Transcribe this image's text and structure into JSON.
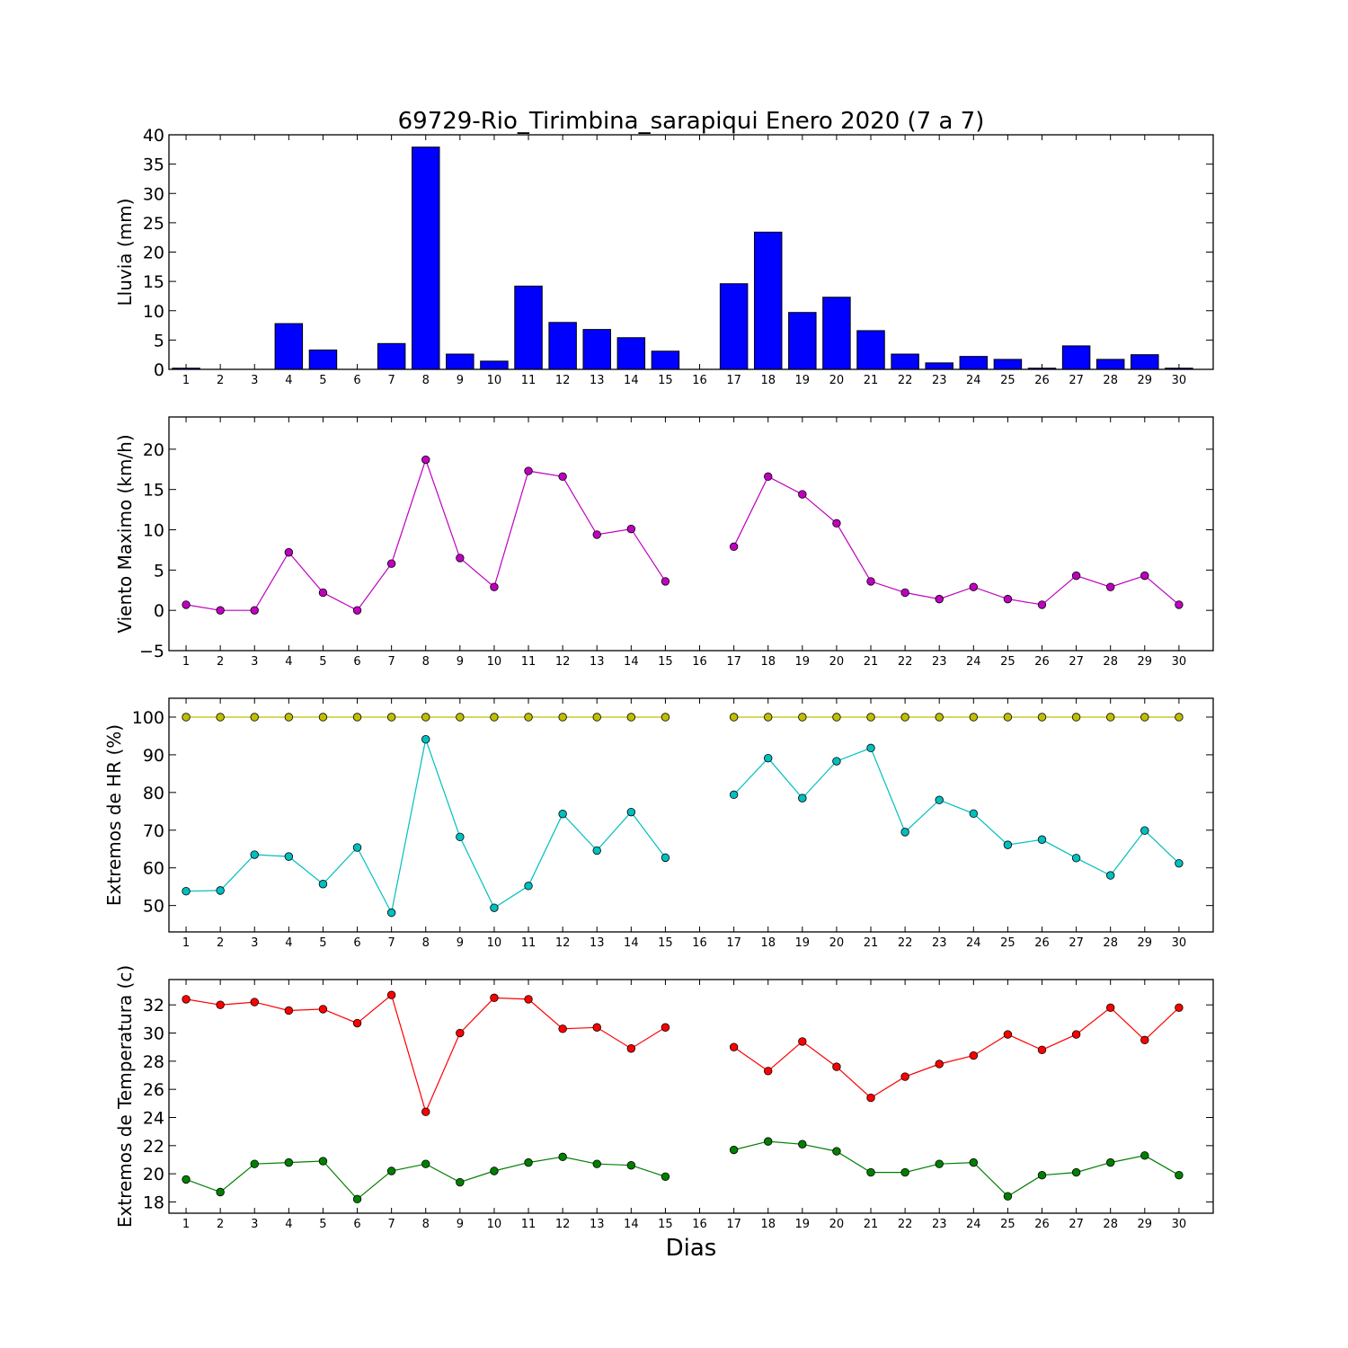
{
  "chart_data": [
    {
      "type": "bar",
      "title": "69729-Rio_Tirimbina_sarapiqui Enero 2020  (7 a 7)",
      "ylabel": "Lluvia (mm)",
      "xlabel": "",
      "categories": [
        1,
        2,
        3,
        4,
        5,
        6,
        7,
        8,
        9,
        10,
        11,
        12,
        13,
        14,
        15,
        16,
        17,
        18,
        19,
        20,
        21,
        22,
        23,
        24,
        25,
        26,
        27,
        28,
        29,
        30
      ],
      "values": [
        0.2,
        0,
        0,
        7.8,
        3.3,
        0,
        4.4,
        37.9,
        2.6,
        1.4,
        14.2,
        8.0,
        6.8,
        5.4,
        3.1,
        0,
        14.6,
        23.4,
        9.7,
        12.3,
        6.6,
        2.6,
        1.1,
        2.2,
        1.7,
        0.2,
        4.0,
        1.7,
        2.5,
        0.2
      ],
      "ylim": [
        0,
        40
      ],
      "yticks": [
        0,
        5,
        10,
        15,
        20,
        25,
        30,
        35,
        40
      ],
      "grid": false,
      "colors": {
        "bar": "#0000ff",
        "edge": "#000000"
      }
    },
    {
      "type": "line",
      "ylabel": "Viento Maximo (km/h)",
      "categories": [
        1,
        2,
        3,
        4,
        5,
        6,
        7,
        8,
        9,
        10,
        11,
        12,
        13,
        14,
        15,
        16,
        17,
        18,
        19,
        20,
        21,
        22,
        23,
        24,
        25,
        26,
        27,
        28,
        29,
        30
      ],
      "series": [
        {
          "values": [
            0.7,
            0,
            0,
            7.2,
            2.2,
            0,
            5.8,
            18.7,
            6.5,
            2.9,
            17.3,
            16.6,
            9.4,
            10.1,
            3.6,
            null,
            7.9,
            16.6,
            14.4,
            10.8,
            3.6,
            2.2,
            1.4,
            2.9,
            1.4,
            0.7,
            4.3,
            2.9,
            4.3,
            0.7
          ],
          "color": "#bf00bf"
        }
      ],
      "ylim": [
        -5,
        24
      ],
      "yticks": [
        -5,
        0,
        5,
        10,
        15,
        20
      ],
      "grid": false
    },
    {
      "type": "line",
      "ylabel": "Extremos de HR (%)",
      "categories": [
        1,
        2,
        3,
        4,
        5,
        6,
        7,
        8,
        9,
        10,
        11,
        12,
        13,
        14,
        15,
        16,
        17,
        18,
        19,
        20,
        21,
        22,
        23,
        24,
        25,
        26,
        27,
        28,
        29,
        30
      ],
      "series": [
        {
          "values": [
            100,
            100,
            100,
            100,
            100,
            100,
            100,
            100,
            100,
            100,
            100,
            100,
            100,
            100,
            100,
            null,
            100,
            100,
            100,
            100,
            100,
            100,
            100,
            100,
            100,
            100,
            100,
            100,
            100,
            100
          ],
          "color": "#bfbf00"
        },
        {
          "values": [
            53.8,
            54,
            63.5,
            63,
            55.7,
            65.4,
            48.1,
            94.1,
            68.2,
            49.4,
            55.2,
            74.3,
            64.6,
            74.8,
            62.7,
            null,
            79.4,
            89.1,
            78.5,
            88.3,
            91.8,
            69.5,
            78,
            74.4,
            66.1,
            67.5,
            62.6,
            58,
            69.9,
            61.2
          ],
          "color": "#00bfbf"
        }
      ],
      "ylim": [
        43,
        105
      ],
      "yticks": [
        50,
        60,
        70,
        80,
        90,
        100
      ],
      "grid": false
    },
    {
      "type": "line",
      "ylabel": "Extremos de Temperatura (c)",
      "xlabel": "Dias",
      "categories": [
        1,
        2,
        3,
        4,
        5,
        6,
        7,
        8,
        9,
        10,
        11,
        12,
        13,
        14,
        15,
        16,
        17,
        18,
        19,
        20,
        21,
        22,
        23,
        24,
        25,
        26,
        27,
        28,
        29,
        30
      ],
      "series": [
        {
          "values": [
            32.4,
            32,
            32.2,
            31.6,
            31.7,
            30.7,
            32.7,
            24.4,
            30,
            32.5,
            32.4,
            30.3,
            30.4,
            28.9,
            30.4,
            null,
            29,
            27.3,
            29.4,
            27.6,
            25.4,
            26.9,
            27.8,
            28.4,
            29.9,
            28.8,
            29.9,
            31.8,
            29.5,
            31.8
          ],
          "color": "#ff0000"
        },
        {
          "values": [
            19.6,
            18.7,
            20.7,
            20.8,
            20.9,
            18.2,
            20.2,
            20.7,
            19.4,
            20.2,
            20.8,
            21.2,
            20.7,
            20.6,
            19.8,
            null,
            21.7,
            22.3,
            22.1,
            21.6,
            20.1,
            20.1,
            20.7,
            20.8,
            18.4,
            19.9,
            20.1,
            20.8,
            21.3,
            19.9
          ],
          "color": "#008000"
        }
      ],
      "ylim": [
        17.2,
        33.8
      ],
      "yticks": [
        18,
        20,
        22,
        24,
        26,
        28,
        30,
        32
      ],
      "grid": false
    }
  ]
}
